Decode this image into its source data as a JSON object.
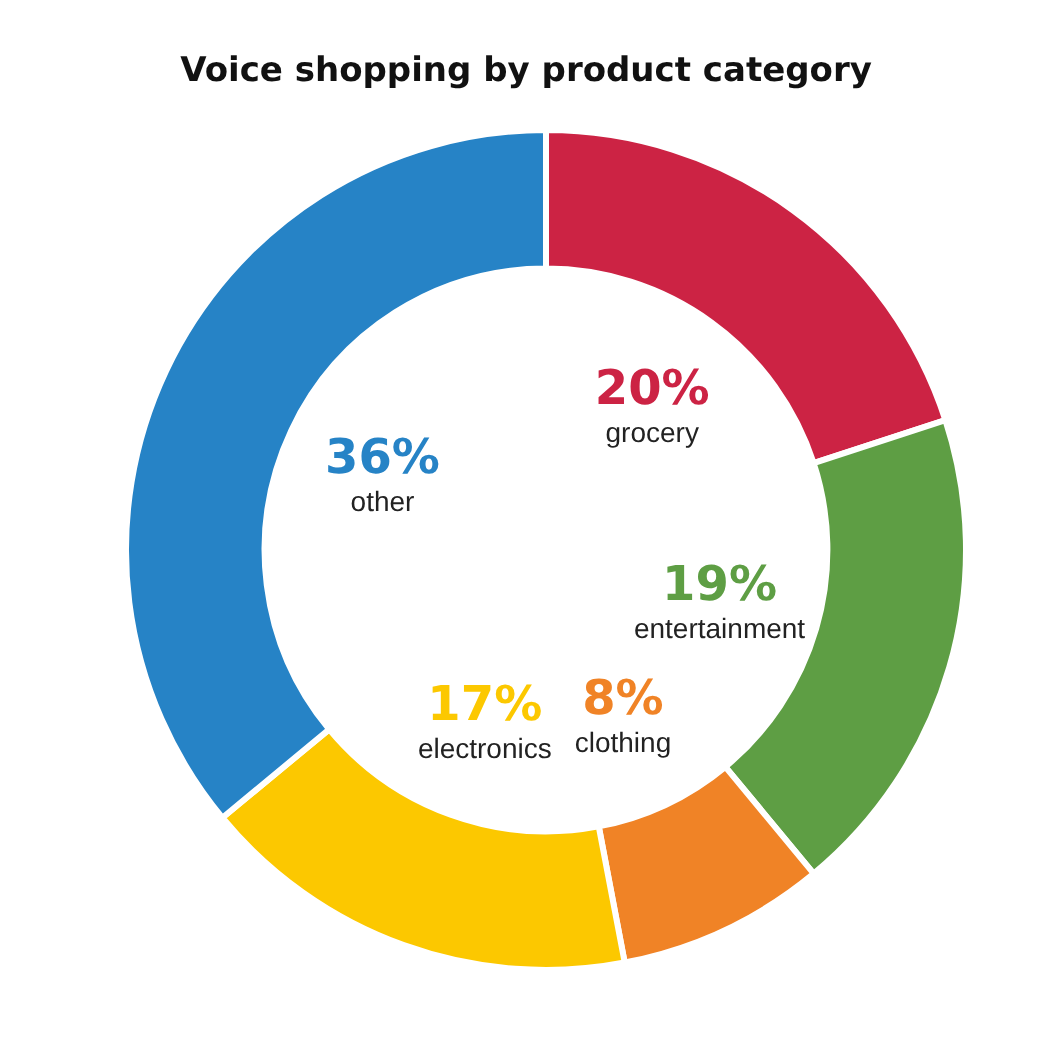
{
  "chart_data": {
    "type": "donut",
    "title": "Voice shopping by product category",
    "categories": [
      "grocery",
      "entertainment",
      "clothing",
      "electronics",
      "other"
    ],
    "values": [
      20,
      19,
      8,
      17,
      36
    ],
    "colors": [
      "#cc2344",
      "#5e9e44",
      "#f08326",
      "#fcc800",
      "#2683c6"
    ],
    "value_labels": [
      "20%",
      "19%",
      "8%",
      "17%",
      "36%"
    ],
    "legend": false
  }
}
